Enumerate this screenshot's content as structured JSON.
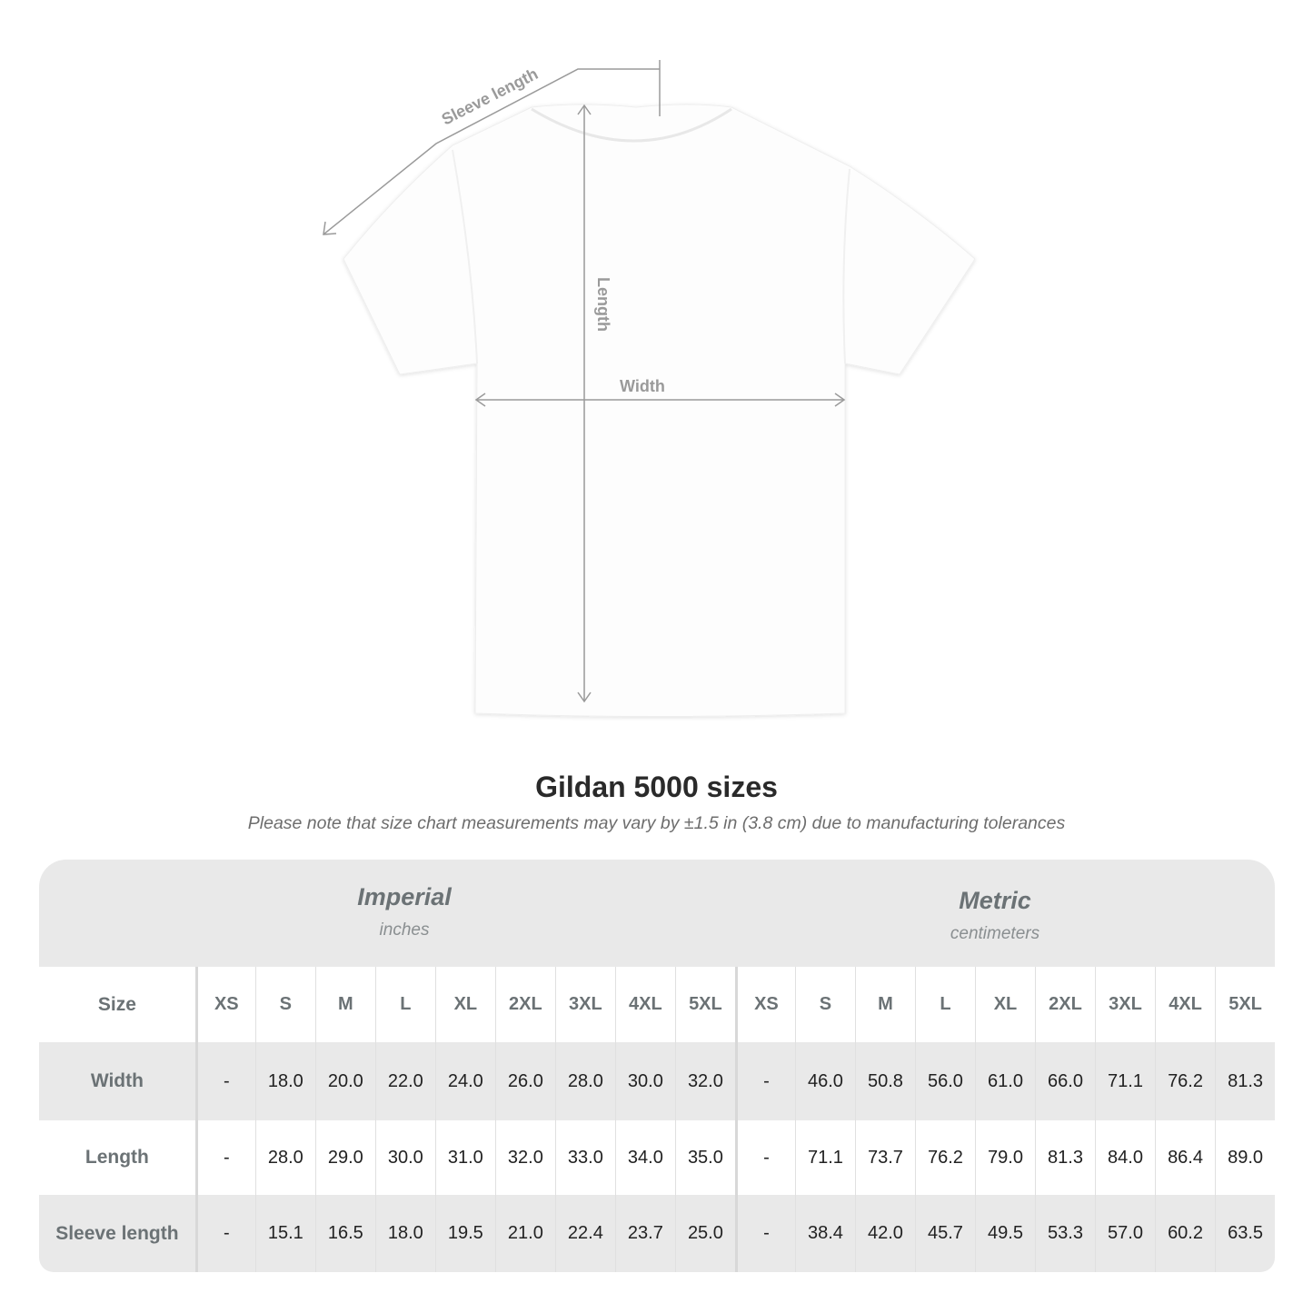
{
  "diagram": {
    "labels": {
      "sleeve": "Sleeve length",
      "length": "Length",
      "width": "Width"
    },
    "line_color": "#9a9a9a",
    "garment_color": "#ffffff"
  },
  "title": "Gildan 5000 sizes",
  "subtitle": "Please note that size chart measurements may vary by ±1.5 in (3.8 cm) due to manufacturing tolerances",
  "table": {
    "imperial": {
      "name": "Imperial",
      "unit": "inches"
    },
    "metric": {
      "name": "Metric",
      "unit": "centimeters"
    },
    "size_label": "Size",
    "sizes": [
      "XS",
      "S",
      "M",
      "L",
      "XL",
      "2XL",
      "3XL",
      "4XL",
      "5XL"
    ],
    "rows": [
      {
        "label": "Width",
        "imperial": [
          "-",
          "18.0",
          "20.0",
          "22.0",
          "24.0",
          "26.0",
          "28.0",
          "30.0",
          "32.0"
        ],
        "metric": [
          "-",
          "46.0",
          "50.8",
          "56.0",
          "61.0",
          "66.0",
          "71.1",
          "76.2",
          "81.3"
        ]
      },
      {
        "label": "Length",
        "imperial": [
          "-",
          "28.0",
          "29.0",
          "30.0",
          "31.0",
          "32.0",
          "33.0",
          "34.0",
          "35.0"
        ],
        "metric": [
          "-",
          "71.1",
          "73.7",
          "76.2",
          "79.0",
          "81.3",
          "84.0",
          "86.4",
          "89.0"
        ]
      },
      {
        "label": "Sleeve length",
        "imperial": [
          "-",
          "15.1",
          "16.5",
          "18.0",
          "19.5",
          "21.0",
          "22.4",
          "23.7",
          "25.0"
        ],
        "metric": [
          "-",
          "38.4",
          "42.0",
          "45.7",
          "49.5",
          "53.3",
          "57.0",
          "60.2",
          "63.5"
        ]
      }
    ],
    "header_color": "#e9e9e9",
    "text_color": "#6b7275"
  }
}
